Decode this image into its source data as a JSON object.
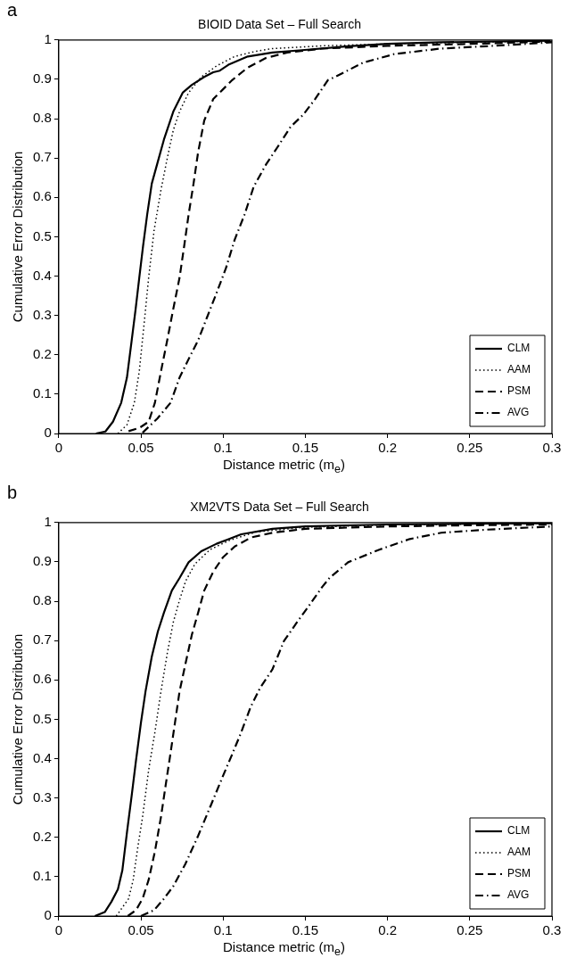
{
  "chart_data": [
    {
      "type": "line",
      "title": "BIOID Data Set – Full Search",
      "xlabel": "Distance metric (m$_{e}$)",
      "ylabel": "Cumulative Error Distribution",
      "annotations": [
        "a"
      ],
      "xlim": [
        0,
        0.3
      ],
      "xticks": [
        0,
        0.05,
        0.1,
        0.15,
        0.2,
        0.25,
        0.3
      ],
      "ylim": [
        0,
        1
      ],
      "yticks": [
        0,
        0.1,
        0.2,
        0.3,
        0.4,
        0.5,
        0.6,
        0.7,
        0.8,
        0.9,
        1
      ],
      "grid": false,
      "legend": "bottom right",
      "marker": "none",
      "series": [
        {
          "name": "CLM",
          "color": "#000000",
          "line_style": "solid",
          "x": [
            0.0227,
            0.0284,
            0.033,
            0.038,
            0.0415,
            0.0444,
            0.0468,
            0.049,
            0.0513,
            0.0538,
            0.0566,
            0.0603,
            0.064,
            0.0697,
            0.0754,
            0.081,
            0.0885,
            0.094,
            0.098,
            0.1036,
            0.115,
            0.13,
            0.148,
            0.176,
            0.2,
            0.232,
            0.299
          ],
          "values": [
            0,
            0.005,
            0.03,
            0.078,
            0.142,
            0.237,
            0.317,
            0.396,
            0.476,
            0.556,
            0.635,
            0.691,
            0.747,
            0.818,
            0.866,
            0.886,
            0.906,
            0.918,
            0.922,
            0.938,
            0.958,
            0.968,
            0.974,
            0.984,
            0.99,
            0.994,
            0.998
          ]
        },
        {
          "name": "AAM",
          "color": "#000000",
          "line_style": "dotted",
          "x": [
            0.036,
            0.0415,
            0.046,
            0.049,
            0.0519,
            0.0547,
            0.058,
            0.0622,
            0.066,
            0.0697,
            0.0735,
            0.079,
            0.0867,
            0.096,
            0.107,
            0.1186,
            0.13,
            0.16,
            0.2,
            0.25,
            0.3
          ],
          "values": [
            0,
            0.022,
            0.078,
            0.158,
            0.277,
            0.396,
            0.516,
            0.619,
            0.699,
            0.771,
            0.818,
            0.866,
            0.906,
            0.934,
            0.958,
            0.97,
            0.978,
            0.985,
            0.99,
            0.994,
            0.998
          ]
        },
        {
          "name": "PSM",
          "color": "#000000",
          "line_style": "dashed",
          "x": [
            0.0425,
            0.049,
            0.0547,
            0.0585,
            0.0622,
            0.066,
            0.0697,
            0.0735,
            0.0763,
            0.079,
            0.082,
            0.0848,
            0.0885,
            0.094,
            0.0998,
            0.1055,
            0.115,
            0.126,
            0.139,
            0.16,
            0.2,
            0.25,
            0.3
          ],
          "values": [
            0.006,
            0.014,
            0.03,
            0.078,
            0.158,
            0.237,
            0.317,
            0.396,
            0.476,
            0.556,
            0.635,
            0.715,
            0.795,
            0.85,
            0.874,
            0.898,
            0.93,
            0.954,
            0.968,
            0.978,
            0.985,
            0.99,
            0.996
          ]
        },
        {
          "name": "AVG",
          "color": "#000000",
          "line_style": "dashdot",
          "x": [
            0.051,
            0.06,
            0.068,
            0.0735,
            0.079,
            0.0848,
            0.09,
            0.096,
            0.1017,
            0.107,
            0.113,
            0.1186,
            0.126,
            0.1336,
            0.141,
            0.1487,
            0.156,
            0.1637,
            0.168,
            0.185,
            0.204,
            0.232,
            0.26,
            0.3
          ],
          "values": [
            0.002,
            0.038,
            0.078,
            0.142,
            0.189,
            0.237,
            0.293,
            0.357,
            0.42,
            0.492,
            0.556,
            0.627,
            0.683,
            0.731,
            0.779,
            0.81,
            0.85,
            0.898,
            0.906,
            0.942,
            0.964,
            0.978,
            0.984,
            0.994
          ]
        }
      ]
    },
    {
      "type": "line",
      "title": "XM2VTS Data Set – Full Search",
      "xlabel": "Distance metric (m$_{e}$)",
      "ylabel": "Cumulative Error Distribution",
      "annotations": [
        "b"
      ],
      "xlim": [
        0,
        0.3
      ],
      "xticks": [
        0,
        0.05,
        0.1,
        0.15,
        0.2,
        0.25,
        0.3
      ],
      "ylim": [
        0,
        1
      ],
      "yticks": [
        0,
        0.1,
        0.2,
        0.3,
        0.4,
        0.5,
        0.6,
        0.7,
        0.8,
        0.9,
        1
      ],
      "grid": false,
      "legend": "bottom right",
      "marker": "none",
      "series": [
        {
          "name": "CLM",
          "color": "#000000",
          "line_style": "solid",
          "x": [
            0.022,
            0.028,
            0.032,
            0.036,
            0.0387,
            0.0415,
            0.0444,
            0.047,
            0.05,
            0.0528,
            0.0566,
            0.0603,
            0.064,
            0.0688,
            0.0735,
            0.079,
            0.0867,
            0.096,
            0.111,
            0.13,
            0.15,
            0.2,
            0.25,
            0.3
          ],
          "values": [
            0,
            0.01,
            0.036,
            0.068,
            0.116,
            0.212,
            0.307,
            0.395,
            0.491,
            0.571,
            0.659,
            0.723,
            0.771,
            0.827,
            0.859,
            0.899,
            0.927,
            0.946,
            0.97,
            0.984,
            0.99,
            0.995,
            0.997,
            0.998
          ]
        },
        {
          "name": "AAM",
          "color": "#000000",
          "line_style": "dotted",
          "x": [
            0.035,
            0.0425,
            0.0453,
            0.048,
            0.051,
            0.0547,
            0.0585,
            0.0622,
            0.066,
            0.0697,
            0.0735,
            0.0772,
            0.0829,
            0.092,
            0.104,
            0.12,
            0.15,
            0.2,
            0.25,
            0.3
          ],
          "values": [
            0,
            0.044,
            0.092,
            0.172,
            0.252,
            0.371,
            0.467,
            0.571,
            0.667,
            0.747,
            0.803,
            0.851,
            0.895,
            0.931,
            0.955,
            0.976,
            0.988,
            0.994,
            0.996,
            0.998
          ]
        },
        {
          "name": "PSM",
          "color": "#000000",
          "line_style": "dashed",
          "x": [
            0.042,
            0.047,
            0.051,
            0.0547,
            0.0585,
            0.0622,
            0.065,
            0.0679,
            0.0707,
            0.0735,
            0.0772,
            0.081,
            0.0848,
            0.0885,
            0.094,
            0.0998,
            0.107,
            0.117,
            0.13,
            0.15,
            0.2,
            0.25,
            0.3
          ],
          "values": [
            0,
            0.015,
            0.044,
            0.092,
            0.164,
            0.252,
            0.331,
            0.411,
            0.491,
            0.571,
            0.643,
            0.715,
            0.771,
            0.827,
            0.875,
            0.911,
            0.939,
            0.962,
            0.974,
            0.984,
            0.99,
            0.993,
            0.995
          ]
        },
        {
          "name": "AVG",
          "color": "#000000",
          "line_style": "dashdot",
          "x": [
            0.05,
            0.058,
            0.064,
            0.0697,
            0.077,
            0.0848,
            0.092,
            0.0998,
            0.1055,
            0.111,
            0.1167,
            0.1224,
            0.13,
            0.137,
            0.145,
            0.152,
            0.16,
            0.1647,
            0.176,
            0.195,
            0.2135,
            0.2327,
            0.2605,
            0.3
          ],
          "values": [
            0,
            0.015,
            0.044,
            0.076,
            0.132,
            0.204,
            0.276,
            0.355,
            0.411,
            0.467,
            0.531,
            0.579,
            0.627,
            0.699,
            0.747,
            0.787,
            0.835,
            0.859,
            0.899,
            0.931,
            0.958,
            0.974,
            0.982,
            0.99
          ]
        }
      ]
    }
  ]
}
